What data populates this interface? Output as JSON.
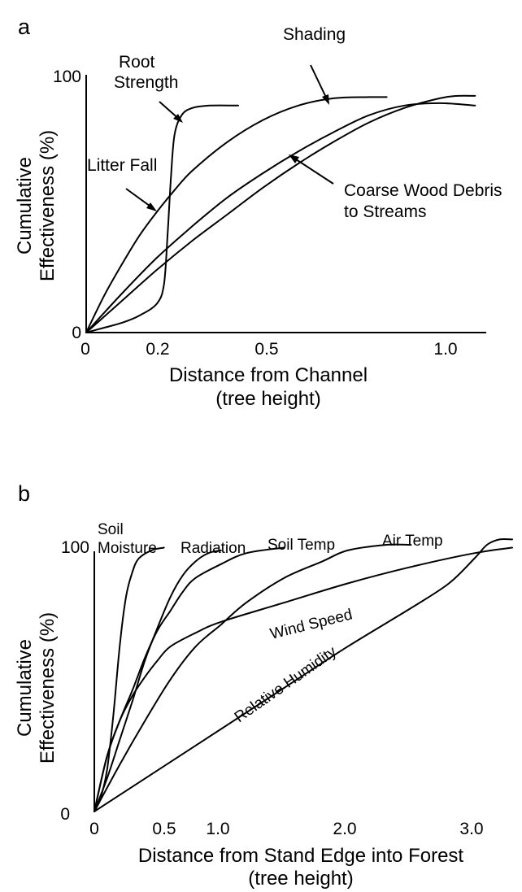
{
  "chart_data": [
    {
      "panel": "a",
      "type": "line",
      "ylabel_lines": [
        "Cumulative",
        "Effectiveness (%)"
      ],
      "xlabel_lines": [
        "Distance from Channel",
        "(tree height)"
      ],
      "xlim": [
        0,
        1.12
      ],
      "ylim": [
        0,
        100
      ],
      "xticks": [
        {
          "value": 0,
          "label": "0"
        },
        {
          "value": 0.2,
          "label": "0.2"
        },
        {
          "value": 0.5,
          "label": "0.5"
        },
        {
          "value": 1.0,
          "label": "1.0"
        }
      ],
      "yticks": [
        {
          "value": 0,
          "label": "0"
        },
        {
          "value": 100,
          "label": "100"
        }
      ],
      "series": [
        {
          "name": "Root Strength",
          "label_lines": [
            "Root",
            "Strength"
          ],
          "points": [
            [
              0,
              0
            ],
            [
              0.05,
              2
            ],
            [
              0.1,
              4
            ],
            [
              0.15,
              7
            ],
            [
              0.2,
              12
            ],
            [
              0.22,
              20
            ],
            [
              0.23,
              40
            ],
            [
              0.24,
              65
            ],
            [
              0.25,
              82
            ],
            [
              0.27,
              90
            ],
            [
              0.3,
              93
            ],
            [
              0.35,
              94
            ],
            [
              0.43,
              94
            ]
          ]
        },
        {
          "name": "Litter Fall",
          "label_lines": [
            "Litter Fall"
          ],
          "points": [
            [
              0,
              0
            ],
            [
              0.05,
              15
            ],
            [
              0.1,
              28
            ],
            [
              0.15,
              40
            ],
            [
              0.2,
              50
            ],
            [
              0.25,
              59
            ],
            [
              0.3,
              67
            ],
            [
              0.4,
              79
            ],
            [
              0.5,
              88
            ],
            [
              0.6,
              94
            ],
            [
              0.7,
              97
            ],
            [
              0.8,
              97.5
            ],
            [
              0.85,
              97.5
            ]
          ]
        },
        {
          "name": "Shading",
          "label_lines": [
            "Shading"
          ],
          "points": [
            [
              0,
              0
            ],
            [
              0.1,
              16
            ],
            [
              0.2,
              31
            ],
            [
              0.3,
              44
            ],
            [
              0.4,
              56
            ],
            [
              0.5,
              66
            ],
            [
              0.6,
              75
            ],
            [
              0.7,
              83
            ],
            [
              0.8,
              90
            ],
            [
              0.9,
              94
            ],
            [
              1.0,
              95
            ],
            [
              1.1,
              94
            ]
          ]
        },
        {
          "name": "Coarse Wood Debris to Streams",
          "label_lines": [
            "Coarse Wood Debris",
            "to Streams"
          ],
          "points": [
            [
              0,
              0
            ],
            [
              0.1,
              13
            ],
            [
              0.2,
              26
            ],
            [
              0.3,
              38
            ],
            [
              0.4,
              49
            ],
            [
              0.5,
              60
            ],
            [
              0.6,
              70
            ],
            [
              0.7,
              79
            ],
            [
              0.8,
              87
            ],
            [
              0.9,
              93
            ],
            [
              1.0,
              97
            ],
            [
              1.05,
              98
            ],
            [
              1.1,
              98
            ]
          ]
        }
      ]
    },
    {
      "panel": "b",
      "type": "line",
      "ylabel_lines": [
        "Cumulative",
        "Effectiveness (%)"
      ],
      "xlabel_lines": [
        "Distance from Stand Edge into Forest",
        "(tree height)"
      ],
      "xlim": [
        0,
        3.3
      ],
      "ylim": [
        0,
        100
      ],
      "xticks": [
        {
          "value": 0,
          "label": "0"
        },
        {
          "value": 0.5,
          "label": "0.5"
        },
        {
          "value": 1.0,
          "label": "1.0"
        },
        {
          "value": 2.0,
          "label": "2.0"
        },
        {
          "value": 3.0,
          "label": "3.0"
        }
      ],
      "yticks": [
        {
          "value": 0,
          "label": "0"
        },
        {
          "value": 100,
          "label": "100"
        }
      ],
      "series": [
        {
          "name": "Soil Moisture",
          "label_lines": [
            "Soil",
            "Moisture"
          ],
          "points": [
            [
              0,
              0
            ],
            [
              0.05,
              5
            ],
            [
              0.1,
              15
            ],
            [
              0.15,
              35
            ],
            [
              0.2,
              60
            ],
            [
              0.25,
              78
            ],
            [
              0.3,
              87
            ],
            [
              0.35,
              92
            ],
            [
              0.45,
              95
            ],
            [
              0.55,
              96
            ]
          ]
        },
        {
          "name": "Radiation",
          "label_lines": [
            "Radiation"
          ],
          "points": [
            [
              0,
              0
            ],
            [
              0.1,
              12
            ],
            [
              0.2,
              26
            ],
            [
              0.3,
              40
            ],
            [
              0.4,
              55
            ],
            [
              0.5,
              67
            ],
            [
              0.6,
              78
            ],
            [
              0.7,
              86
            ],
            [
              0.8,
              91
            ],
            [
              0.9,
              94
            ],
            [
              1.0,
              95
            ]
          ]
        },
        {
          "name": "Soil Temp",
          "label_lines": [
            "Soil Temp"
          ],
          "points": [
            [
              0,
              0
            ],
            [
              0.1,
              20
            ],
            [
              0.2,
              33
            ],
            [
              0.3,
              44
            ],
            [
              0.4,
              56
            ],
            [
              0.5,
              66
            ],
            [
              0.6,
              73
            ],
            [
              0.7,
              80
            ],
            [
              0.8,
              85
            ],
            [
              1.0,
              90
            ],
            [
              1.2,
              94
            ],
            [
              1.5,
              96
            ]
          ]
        },
        {
          "name": "Air Temp",
          "label_lines": [
            "Air Temp"
          ],
          "points": [
            [
              0,
              0
            ],
            [
              0.2,
              17
            ],
            [
              0.4,
              33
            ],
            [
              0.6,
              48
            ],
            [
              0.8,
              60
            ],
            [
              1.0,
              68
            ],
            [
              1.2,
              76
            ],
            [
              1.5,
              85
            ],
            [
              1.8,
              91
            ],
            [
              2.0,
              95
            ],
            [
              2.3,
              97
            ],
            [
              2.5,
              97
            ]
          ]
        },
        {
          "name": "Wind Speed",
          "label_lines": [
            "Wind Speed"
          ],
          "points": [
            [
              0,
              0
            ],
            [
              0.1,
              20
            ],
            [
              0.2,
              33
            ],
            [
              0.3,
              42
            ],
            [
              0.4,
              49
            ],
            [
              0.5,
              55
            ],
            [
              0.6,
              60
            ],
            [
              0.8,
              65
            ],
            [
              1.0,
              69
            ],
            [
              1.5,
              76
            ],
            [
              2.0,
              83
            ],
            [
              2.5,
              89
            ],
            [
              3.0,
              94
            ],
            [
              3.3,
              96
            ]
          ]
        },
        {
          "name": "Relative Humidity",
          "label_lines": [
            "Relative Humidity"
          ],
          "points": [
            [
              0,
              0
            ],
            [
              0.5,
              15
            ],
            [
              1.0,
              30
            ],
            [
              1.5,
              45
            ],
            [
              2.0,
              60
            ],
            [
              2.5,
              74
            ],
            [
              2.8,
              83
            ],
            [
              3.0,
              92
            ],
            [
              3.1,
              97
            ],
            [
              3.2,
              99
            ],
            [
              3.3,
              99
            ]
          ]
        }
      ]
    }
  ]
}
